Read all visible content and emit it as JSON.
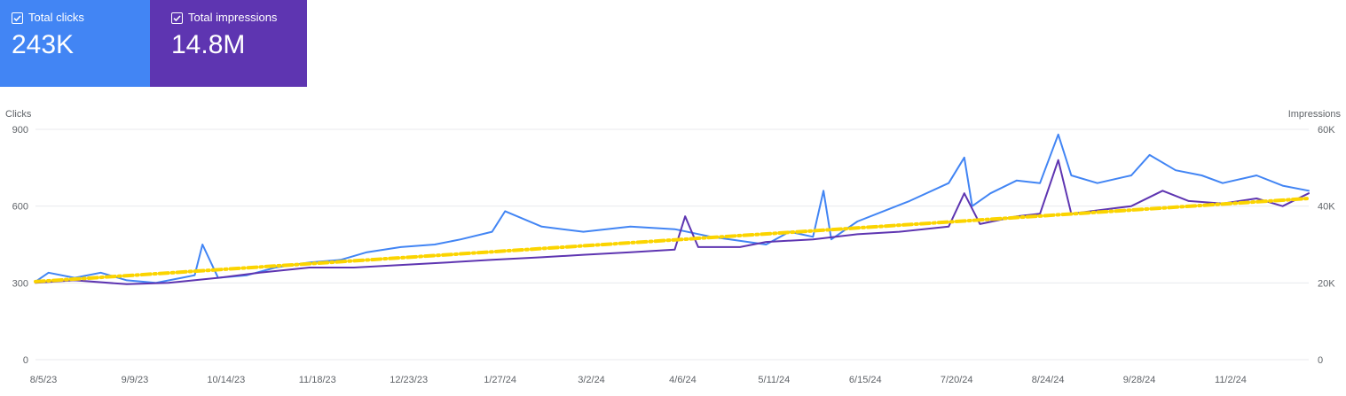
{
  "cards": [
    {
      "label": "Total clicks",
      "value": "243K",
      "color": "#4285f4",
      "checked": true
    },
    {
      "label": "Total impressions",
      "value": "14.8M",
      "color": "#5e35b1",
      "checked": true
    }
  ],
  "chart_data": {
    "type": "line",
    "left_axis": {
      "label": "Clicks",
      "ticks": [
        "900",
        "600",
        "300",
        "0"
      ],
      "ylim": [
        0,
        900
      ]
    },
    "right_axis": {
      "label": "Impressions",
      "ticks": [
        "60K",
        "40K",
        "20K",
        "0"
      ],
      "ylim": [
        0,
        60000
      ]
    },
    "x_ticks": [
      "8/5/23",
      "9/9/23",
      "10/14/23",
      "11/18/23",
      "12/23/23",
      "1/27/24",
      "3/2/24",
      "4/6/24",
      "5/11/24",
      "6/15/24",
      "7/20/24",
      "8/24/24",
      "9/28/24",
      "11/2/24"
    ],
    "x_range": [
      "2023-08-05",
      "2024-12-05"
    ],
    "grid": true,
    "series": [
      {
        "axis": "left",
        "color": "#4285f4",
        "points": [
          [
            "2023-08-05",
            305
          ],
          [
            "2023-08-10",
            340
          ],
          [
            "2023-08-20",
            320
          ],
          [
            "2023-08-30",
            340
          ],
          [
            "2023-09-09",
            310
          ],
          [
            "2023-09-20",
            300
          ],
          [
            "2023-09-30",
            320
          ],
          [
            "2023-10-05",
            330
          ],
          [
            "2023-10-08",
            450
          ],
          [
            "2023-10-14",
            320
          ],
          [
            "2023-10-25",
            330
          ],
          [
            "2023-11-05",
            360
          ],
          [
            "2023-11-18",
            380
          ],
          [
            "2023-11-30",
            390
          ],
          [
            "2023-12-10",
            420
          ],
          [
            "2023-12-23",
            440
          ],
          [
            "2024-01-05",
            450
          ],
          [
            "2024-01-15",
            470
          ],
          [
            "2024-01-27",
            500
          ],
          [
            "2024-02-01",
            580
          ],
          [
            "2024-02-15",
            520
          ],
          [
            "2024-03-02",
            500
          ],
          [
            "2024-03-20",
            520
          ],
          [
            "2024-04-06",
            510
          ],
          [
            "2024-04-20",
            480
          ],
          [
            "2024-05-11",
            450
          ],
          [
            "2024-05-20",
            500
          ],
          [
            "2024-05-29",
            480
          ],
          [
            "2024-06-02",
            660
          ],
          [
            "2024-06-05",
            470
          ],
          [
            "2024-06-15",
            540
          ],
          [
            "2024-06-25",
            580
          ],
          [
            "2024-07-05",
            620
          ],
          [
            "2024-07-20",
            690
          ],
          [
            "2024-07-26",
            790
          ],
          [
            "2024-07-29",
            600
          ],
          [
            "2024-08-05",
            650
          ],
          [
            "2024-08-15",
            700
          ],
          [
            "2024-08-24",
            690
          ],
          [
            "2024-08-31",
            880
          ],
          [
            "2024-09-05",
            720
          ],
          [
            "2024-09-15",
            690
          ],
          [
            "2024-09-28",
            720
          ],
          [
            "2024-10-05",
            800
          ],
          [
            "2024-10-15",
            740
          ],
          [
            "2024-10-25",
            720
          ],
          [
            "2024-11-02",
            690
          ],
          [
            "2024-11-15",
            720
          ],
          [
            "2024-11-25",
            680
          ],
          [
            "2024-12-05",
            660
          ]
        ]
      },
      {
        "axis": "left",
        "color": "#5e35b1",
        "points": [
          [
            "2023-08-05",
            300
          ],
          [
            "2023-08-20",
            310
          ],
          [
            "2023-09-09",
            295
          ],
          [
            "2023-09-25",
            300
          ],
          [
            "2023-10-14",
            320
          ],
          [
            "2023-10-30",
            340
          ],
          [
            "2023-11-18",
            360
          ],
          [
            "2023-12-05",
            360
          ],
          [
            "2023-12-23",
            370
          ],
          [
            "2024-01-10",
            380
          ],
          [
            "2024-01-27",
            390
          ],
          [
            "2024-02-15",
            400
          ],
          [
            "2024-03-02",
            410
          ],
          [
            "2024-03-20",
            420
          ],
          [
            "2024-04-06",
            430
          ],
          [
            "2024-04-10",
            560
          ],
          [
            "2024-04-15",
            440
          ],
          [
            "2024-05-01",
            440
          ],
          [
            "2024-05-11",
            460
          ],
          [
            "2024-05-29",
            470
          ],
          [
            "2024-06-15",
            490
          ],
          [
            "2024-07-01",
            500
          ],
          [
            "2024-07-20",
            520
          ],
          [
            "2024-07-26",
            650
          ],
          [
            "2024-08-01",
            530
          ],
          [
            "2024-08-15",
            560
          ],
          [
            "2024-08-24",
            570
          ],
          [
            "2024-08-31",
            780
          ],
          [
            "2024-09-05",
            570
          ],
          [
            "2024-09-20",
            590
          ],
          [
            "2024-09-28",
            600
          ],
          [
            "2024-10-10",
            660
          ],
          [
            "2024-10-20",
            620
          ],
          [
            "2024-11-02",
            610
          ],
          [
            "2024-11-15",
            630
          ],
          [
            "2024-11-25",
            600
          ],
          [
            "2024-12-05",
            650
          ]
        ]
      },
      {
        "axis": "left",
        "color": "#fbd400",
        "style": "dashed",
        "points": [
          [
            "2023-08-05",
            305
          ],
          [
            "2024-12-05",
            630
          ]
        ]
      }
    ]
  }
}
